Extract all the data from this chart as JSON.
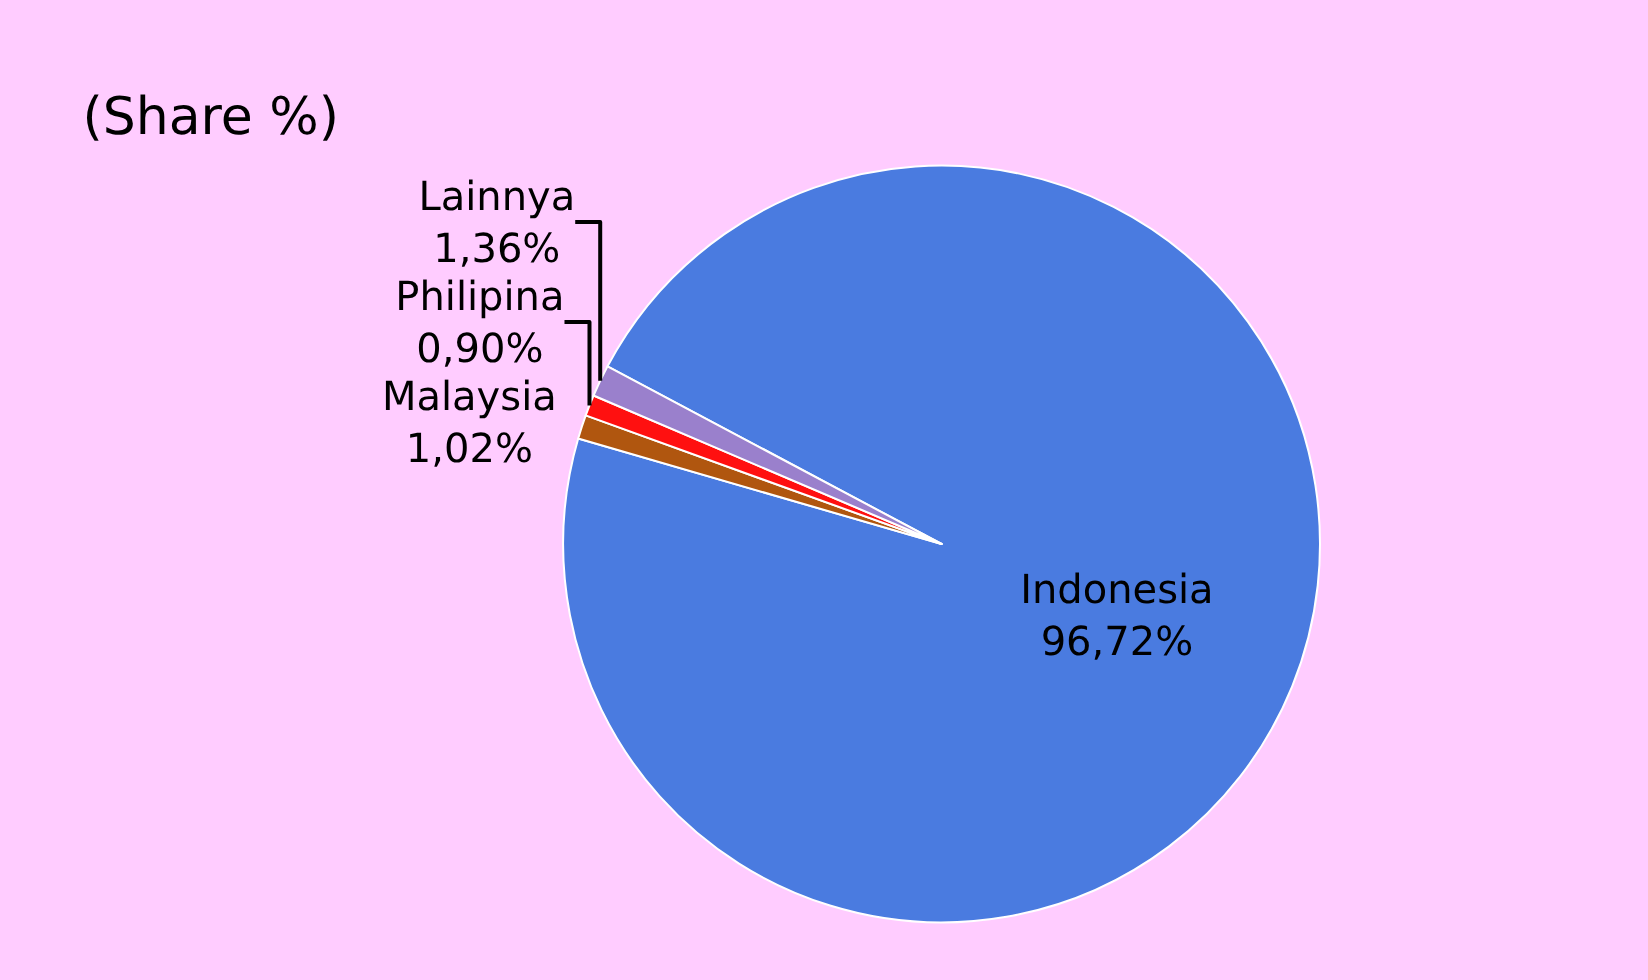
{
  "chart_data": {
    "type": "pie",
    "title": "(Share %)",
    "categories": [
      "Indonesia",
      "Malaysia",
      "Philipina",
      "Lainnya"
    ],
    "values": [
      96.72,
      1.02,
      0.9,
      1.36
    ],
    "colors": [
      "#4a7be0",
      "#b0560f",
      "#ff1010",
      "#9a80cc"
    ],
    "value_labels": [
      "96,72%",
      "1,02%",
      "0,90%",
      "1,36%"
    ],
    "legend": false
  }
}
